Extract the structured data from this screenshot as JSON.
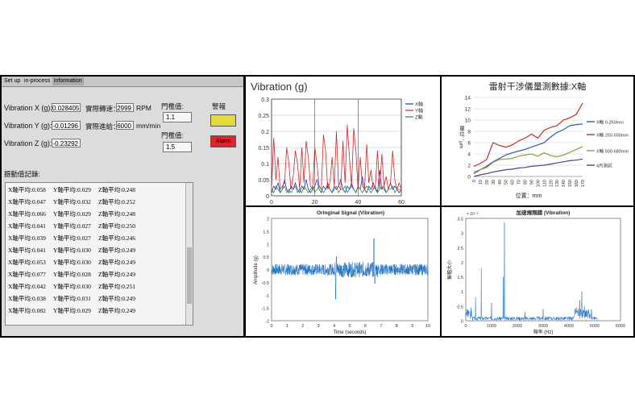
{
  "hmi": {
    "tabs": [
      "Set up",
      "in-process",
      "information"
    ],
    "vib_x": {
      "label": "Vibration X (g):",
      "value": "0.028405"
    },
    "vib_y": {
      "label": "Vibration Y (g):",
      "value": "-0.01296"
    },
    "vib_z": {
      "label": "Vibration Z (g):",
      "value": "-0.23292"
    },
    "actual_speed": {
      "label": "實際轉速：",
      "value": "2999",
      "unit": "RPM"
    },
    "actual_feed": {
      "label": "實際進給：",
      "value": "6000",
      "unit": "mm/min"
    },
    "threshold1": {
      "label": "門檻值:",
      "value": "1.1"
    },
    "threshold2": {
      "label": "門檻值:",
      "value": "1.5"
    },
    "alarm_label": "警報",
    "alarm_button": "Alarm",
    "warning_color": "#e6d93a",
    "alarm_color": "#e8202a",
    "log_title": "振動值記錄:",
    "log_rows": [
      [
        "X軸平均:0.058",
        "Y軸平均:0.029",
        "Z軸平均:0.248"
      ],
      [
        "X軸平均:0.047",
        "Y軸平均:0.032",
        "Z軸平均:0.252"
      ],
      [
        "X軸平均:0.066",
        "Y軸平均:0.029",
        "Z軸平均:0.248"
      ],
      [
        "X軸平均:0.041",
        "Y軸平均:0.027",
        "Z軸平均:0.250"
      ],
      [
        "X軸平均:0.039",
        "Y軸平均:0.027",
        "Z軸平均:0.246"
      ],
      [
        "X軸平均:0.041",
        "Y軸平均:0.030",
        "Z軸平均:0.249"
      ],
      [
        "X軸平均:0.053",
        "Y軸平均:0.030",
        "Z軸平均:0.249"
      ],
      [
        "X軸平均:0.077",
        "Y軸平均:0.028",
        "Z軸平均:0.249"
      ],
      [
        "X軸平均:0.042",
        "Y軸平均:0.030",
        "Z軸平均:0.251"
      ],
      [
        "X軸平均:0.038",
        "Y軸平均:0.031",
        "Z軸平均:0.249"
      ],
      [
        "X軸平均:0.082",
        "Y軸平均:0.029",
        "Z軸平均:0.249"
      ]
    ]
  },
  "chart_data": [
    {
      "type": "line",
      "title": "Vibration (g)",
      "xlim": [
        0,
        60
      ],
      "ylim": [
        0,
        0.3
      ],
      "xticks": [
        "0",
        "20",
        "40",
        "60"
      ],
      "yticks": [
        "0",
        "0.05",
        "0.1",
        "0.15",
        "0.2",
        "0.25",
        "0.3"
      ],
      "legend": "top-right",
      "series": [
        {
          "name": "X軸",
          "color": "#2233cc",
          "x": [
            0,
            1,
            2,
            3,
            4,
            5,
            6,
            7,
            8,
            9,
            10,
            11,
            12,
            13,
            14,
            15,
            16,
            17,
            18,
            19,
            20,
            21,
            22,
            23,
            24,
            25,
            26,
            27,
            28,
            29,
            30,
            31,
            32,
            33,
            34,
            35,
            36,
            37,
            38,
            39,
            40,
            41,
            42,
            43,
            44,
            45,
            46,
            47,
            48,
            49,
            50,
            51,
            52,
            53,
            54,
            55,
            56,
            57,
            58,
            59,
            60
          ],
          "values": [
            0.01,
            0.03,
            0.02,
            0.04,
            0.01,
            0.02,
            0.05,
            0.02,
            0.01,
            0.03,
            0.02,
            0.04,
            0.02,
            0.01,
            0.03,
            0.02,
            0.05,
            0.02,
            0.01,
            0.02,
            0.03,
            0.05,
            0.02,
            0.01,
            0.03,
            0.02,
            0.04,
            0.02,
            0.01,
            0.03,
            0.02,
            0.03,
            0.05,
            0.02,
            0.01,
            0.03,
            0.02,
            0.04,
            0.02,
            0.01,
            0.03,
            0.02,
            0.06,
            0.02,
            0.01,
            0.03,
            0.02,
            0.04,
            0.02,
            0.01,
            0.08,
            0.02,
            0.03,
            0.01,
            0.02,
            0.04,
            0.02,
            0.03,
            0.02,
            0.01,
            0.02
          ]
        },
        {
          "name": "Y軸",
          "color": "#e02020",
          "x": [
            0,
            1,
            2,
            3,
            4,
            5,
            6,
            7,
            8,
            9,
            10,
            11,
            12,
            13,
            14,
            15,
            16,
            17,
            18,
            19,
            20,
            21,
            22,
            23,
            24,
            25,
            26,
            27,
            28,
            29,
            30,
            31,
            32,
            33,
            34,
            35,
            36,
            37,
            38,
            39,
            40,
            41,
            42,
            43,
            44,
            45,
            46,
            47,
            48,
            49,
            50,
            51,
            52,
            53,
            54,
            55,
            56,
            57,
            58,
            59,
            60
          ],
          "values": [
            0.02,
            0.18,
            0.05,
            0.12,
            0.02,
            0.03,
            0.04,
            0.15,
            0.1,
            0.02,
            0.06,
            0.14,
            0.1,
            0.02,
            0.15,
            0.04,
            0.17,
            0.12,
            0.03,
            0.02,
            0.15,
            0.1,
            0.03,
            0.02,
            0.19,
            0.14,
            0.02,
            0.04,
            0.12,
            0.03,
            0.2,
            0.03,
            0.02,
            0.17,
            0.04,
            0.22,
            0.12,
            0.03,
            0.21,
            0.14,
            0.02,
            0.12,
            0.03,
            0.02,
            0.16,
            0.04,
            0.08,
            0.02,
            0.03,
            0.14,
            0.02,
            0.13,
            0.03,
            0.06,
            0.02,
            0.04,
            0.14,
            0.05,
            0.02,
            0.04,
            0.02
          ]
        },
        {
          "name": "Z軸",
          "color": "#338833",
          "x": [
            0,
            1,
            2,
            3,
            4,
            5,
            6,
            7,
            8,
            9,
            10,
            11,
            12,
            13,
            14,
            15,
            16,
            17,
            18,
            19,
            20,
            21,
            22,
            23,
            24,
            25,
            26,
            27,
            28,
            29,
            30,
            31,
            32,
            33,
            34,
            35,
            36,
            37,
            38,
            39,
            40,
            41,
            42,
            43,
            44,
            45,
            46,
            47,
            48,
            49,
            50,
            51,
            52,
            53,
            54,
            55,
            56,
            57,
            58,
            59,
            60
          ],
          "values": [
            0.02,
            0.01,
            0.03,
            0.02,
            0.01,
            0.02,
            0.03,
            0.01,
            0.02,
            0.01,
            0.02,
            0.03,
            0.01,
            0.02,
            0.01,
            0.03,
            0.02,
            0.01,
            0.02,
            0.03,
            0.01,
            0.02,
            0.03,
            0.02,
            0.01,
            0.02,
            0.03,
            0.02,
            0.01,
            0.02,
            0.03,
            0.01,
            0.02,
            0.02,
            0.03,
            0.01,
            0.02,
            0.03,
            0.02,
            0.01,
            0.03,
            0.02,
            0.01,
            0.02,
            0.03,
            0.02,
            0.01,
            0.02,
            0.03,
            0.01,
            0.02,
            0.03,
            0.02,
            0.01,
            0.02,
            0.02,
            0.03,
            0.01,
            0.02,
            0.02,
            0.02
          ]
        }
      ]
    },
    {
      "type": "line",
      "title": "雷射干涉儀量測數據:X軸",
      "xlabel": "位置：mm",
      "ylabel": "單位：μm",
      "xticks": [
        "0",
        "10",
        "20",
        "30",
        "40",
        "50",
        "60",
        "70",
        "80",
        "90",
        "100",
        "110",
        "120",
        "130",
        "140",
        "150",
        "160",
        "170"
      ],
      "yticks": [
        "0",
        "2",
        "4",
        "6",
        "8",
        "10",
        "12",
        "14"
      ],
      "ylim": [
        0,
        14
      ],
      "legend": "right",
      "series": [
        {
          "name": "X軸 0-250mm",
          "color": "#2a5db0",
          "values": [
            0.5,
            1.2,
            1.8,
            2.6,
            3.2,
            3.8,
            4.2,
            4.5,
            4.8,
            5.2,
            5.6,
            6.0,
            7.0,
            7.8,
            8.3,
            9.0,
            9.2,
            9.3
          ]
        },
        {
          "name": "X軸 250-500mm",
          "color": "#c0302a",
          "values": [
            1.8,
            2.3,
            3.0,
            6.0,
            5.5,
            5.2,
            5.6,
            6.3,
            6.8,
            7.5,
            6.8,
            8.2,
            8.7,
            9.0,
            10.0,
            10.4,
            11.0,
            13.0
          ]
        },
        {
          "name": "X軸 500-680mm",
          "color": "#8aa23a",
          "values": [
            0.8,
            1.2,
            1.6,
            2.5,
            3.0,
            3.1,
            3.2,
            3.6,
            3.8,
            4.0,
            3.6,
            4.2,
            3.7,
            3.5,
            3.8,
            4.3,
            4.8,
            5.3
          ]
        },
        {
          "name": "4月測試",
          "color": "#5a3a8a",
          "values": [
            0.0,
            0.3,
            0.5,
            0.8,
            1.0,
            1.2,
            1.3,
            1.5,
            1.6,
            1.8,
            1.9,
            2.0,
            2.2,
            2.4,
            2.6,
            2.8,
            2.9,
            3.1
          ]
        }
      ]
    },
    {
      "type": "line",
      "title": "Oringinal Signal (Vibration)",
      "xlabel": "Time (seconds)",
      "ylabel": "Amplitude (g)",
      "xlim": [
        0,
        10
      ],
      "ylim": [
        -2,
        2
      ],
      "xticks": [
        "0",
        "1",
        "2",
        "3",
        "4",
        "5",
        "6",
        "7",
        "8",
        "9",
        "10"
      ],
      "yticks": [
        "-2",
        "-1.5",
        "-1",
        "-0.5",
        "0",
        "0.5",
        "1",
        "1.5",
        "2"
      ],
      "series": [
        {
          "name": "",
          "color": "#1a6fc0"
        }
      ]
    },
    {
      "type": "line",
      "title": "加速規頻譜 (Vibration)",
      "xlabel": "頻率 (Hz)",
      "ylabel": "振幅大小",
      "exponent": "× 10⁻³",
      "xlim": [
        0,
        6000
      ],
      "ylim": [
        0,
        3.5
      ],
      "xticks": [
        "0",
        "1000",
        "2000",
        "3000",
        "4000",
        "5000",
        "6000"
      ],
      "yticks": [
        "0",
        "0.5",
        "1",
        "1.5",
        "2",
        "2.5",
        "3",
        "3.5"
      ],
      "series": [
        {
          "name": "",
          "color": "#1a6fc0"
        }
      ]
    }
  ]
}
